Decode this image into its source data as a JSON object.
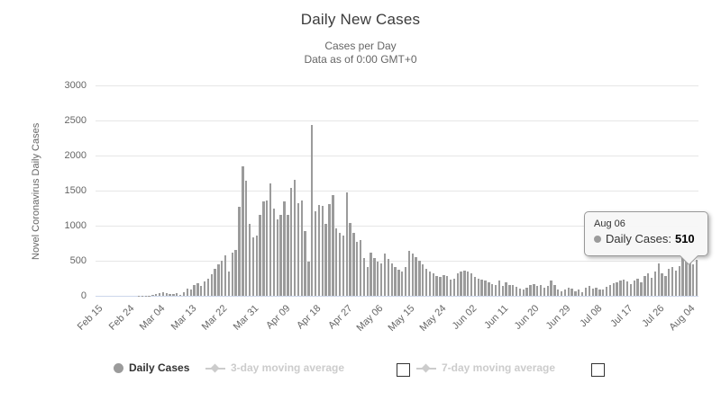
{
  "header": {
    "title": "Daily New Cases",
    "subtitle_line1": "Cases per Day",
    "subtitle_line2": "Data as of 0:00 GMT+0"
  },
  "tooltip": {
    "date": "Aug 06",
    "series_label": "Daily Cases:",
    "value": "510"
  },
  "legend": {
    "items": [
      {
        "label": "Daily Cases",
        "visible": true
      },
      {
        "label": "3-day moving average",
        "visible": false
      },
      {
        "label": "7-day moving average",
        "visible": false
      }
    ]
  },
  "colors": {
    "bar": "#9b9b9b",
    "hidden_legend": "#cccccc",
    "gridline": "#e6e6e6",
    "axis_line": "#ccd6eb",
    "tick_text": "#666666",
    "title_text": "#3c3c3c",
    "tooltip_bg": "#f7f7f7",
    "tooltip_border": "#999999"
  },
  "chart_data": {
    "type": "bar",
    "title": "Daily New Cases",
    "subtitle": "Cases per Day — Data as of 0:00 GMT+0",
    "xlabel": "",
    "ylabel": "Novel Coronavirus Daily Cases",
    "ylim": [
      0,
      3000
    ],
    "ytick_interval": 500,
    "yticks": [
      0,
      500,
      1000,
      1500,
      2000,
      2500,
      3000
    ],
    "grid": "horizontal",
    "legend_position": "bottom",
    "legend_entries": [
      "Daily Cases",
      "3-day moving average",
      "7-day moving average"
    ],
    "series_name": "Daily Cases",
    "highlighted_point": {
      "x": "Aug 06",
      "y": 510
    },
    "xtick_labels": [
      "Feb 15",
      "Feb 24",
      "Mar 04",
      "Mar 13",
      "Mar 22",
      "Mar 31",
      "Apr 09",
      "Apr 18",
      "Apr 27",
      "May 06",
      "May 15",
      "May 24",
      "Jun 02",
      "Jun 11",
      "Jun 20",
      "Jun 29",
      "Jul 08",
      "Jul 17",
      "Jul 26",
      "Aug 04"
    ],
    "xtick_every_n_days": 9,
    "x": [
      "Feb 15",
      "Feb 16",
      "Feb 17",
      "Feb 18",
      "Feb 19",
      "Feb 20",
      "Feb 21",
      "Feb 22",
      "Feb 23",
      "Feb 24",
      "Feb 25",
      "Feb 26",
      "Feb 27",
      "Feb 28",
      "Feb 29",
      "Mar 01",
      "Mar 02",
      "Mar 03",
      "Mar 04",
      "Mar 05",
      "Mar 06",
      "Mar 07",
      "Mar 08",
      "Mar 09",
      "Mar 10",
      "Mar 11",
      "Mar 12",
      "Mar 13",
      "Mar 14",
      "Mar 15",
      "Mar 16",
      "Mar 17",
      "Mar 18",
      "Mar 19",
      "Mar 20",
      "Mar 21",
      "Mar 22",
      "Mar 23",
      "Mar 24",
      "Mar 25",
      "Mar 26",
      "Mar 27",
      "Mar 28",
      "Mar 29",
      "Mar 30",
      "Mar 31",
      "Apr 01",
      "Apr 02",
      "Apr 03",
      "Apr 04",
      "Apr 05",
      "Apr 06",
      "Apr 07",
      "Apr 08",
      "Apr 09",
      "Apr 10",
      "Apr 11",
      "Apr 12",
      "Apr 13",
      "Apr 14",
      "Apr 15",
      "Apr 16",
      "Apr 17",
      "Apr 18",
      "Apr 19",
      "Apr 20",
      "Apr 21",
      "Apr 22",
      "Apr 23",
      "Apr 24",
      "Apr 25",
      "Apr 26",
      "Apr 27",
      "Apr 28",
      "Apr 29",
      "Apr 30",
      "May 01",
      "May 02",
      "May 03",
      "May 04",
      "May 05",
      "May 06",
      "May 07",
      "May 08",
      "May 09",
      "May 10",
      "May 11",
      "May 12",
      "May 13",
      "May 14",
      "May 15",
      "May 16",
      "May 17",
      "May 18",
      "May 19",
      "May 20",
      "May 21",
      "May 22",
      "May 23",
      "May 24",
      "May 25",
      "May 26",
      "May 27",
      "May 28",
      "May 29",
      "May 30",
      "May 31",
      "Jun 01",
      "Jun 02",
      "Jun 03",
      "Jun 04",
      "Jun 05",
      "Jun 06",
      "Jun 07",
      "Jun 08",
      "Jun 09",
      "Jun 10",
      "Jun 11",
      "Jun 12",
      "Jun 13",
      "Jun 14",
      "Jun 15",
      "Jun 16",
      "Jun 17",
      "Jun 18",
      "Jun 19",
      "Jun 20",
      "Jun 21",
      "Jun 22",
      "Jun 23",
      "Jun 24",
      "Jun 25",
      "Jun 26",
      "Jun 27",
      "Jun 28",
      "Jun 29",
      "Jun 30",
      "Jul 01",
      "Jul 02",
      "Jul 03",
      "Jul 04",
      "Jul 05",
      "Jul 06",
      "Jul 07",
      "Jul 08",
      "Jul 09",
      "Jul 10",
      "Jul 11",
      "Jul 12",
      "Jul 13",
      "Jul 14",
      "Jul 15",
      "Jul 16",
      "Jul 17",
      "Jul 18",
      "Jul 19",
      "Jul 20",
      "Jul 21",
      "Jul 22",
      "Jul 23",
      "Jul 24",
      "Jul 25",
      "Jul 26",
      "Jul 27",
      "Jul 28",
      "Jul 29",
      "Jul 30",
      "Jul 31",
      "Aug 01",
      "Aug 02",
      "Aug 03",
      "Aug 04",
      "Aug 05",
      "Aug 06"
    ],
    "values": [
      0,
      0,
      0,
      0,
      0,
      0,
      0,
      0,
      0,
      0,
      0,
      0,
      2,
      3,
      4,
      6,
      10,
      25,
      45,
      55,
      35,
      22,
      26,
      43,
      18,
      52,
      105,
      85,
      150,
      180,
      140,
      205,
      245,
      310,
      385,
      450,
      505,
      575,
      345,
      620,
      650,
      1275,
      1840,
      1645,
      1030,
      835,
      855,
      1160,
      1345,
      1355,
      1600,
      1240,
      1090,
      1155,
      1345,
      1155,
      1540,
      1650,
      1325,
      1365,
      920,
      490,
      2430,
      1200,
      1295,
      1280,
      1025,
      1310,
      1430,
      960,
      900,
      855,
      1470,
      1045,
      900,
      770,
      790,
      535,
      405,
      620,
      540,
      490,
      460,
      600,
      525,
      460,
      405,
      370,
      340,
      405,
      640,
      600,
      555,
      500,
      450,
      385,
      340,
      320,
      285,
      270,
      300,
      280,
      235,
      245,
      320,
      340,
      365,
      340,
      320,
      270,
      245,
      235,
      215,
      190,
      170,
      160,
      215,
      135,
      190,
      160,
      150,
      130,
      105,
      95,
      120,
      160,
      170,
      135,
      150,
      120,
      135,
      220,
      150,
      95,
      65,
      95,
      115,
      100,
      65,
      85,
      50,
      120,
      135,
      105,
      120,
      85,
      95,
      130,
      160,
      180,
      190,
      215,
      235,
      205,
      170,
      220,
      250,
      190,
      280,
      320,
      255,
      340,
      460,
      320,
      280,
      385,
      405,
      365,
      425,
      590,
      620,
      600,
      450,
      510
    ]
  }
}
